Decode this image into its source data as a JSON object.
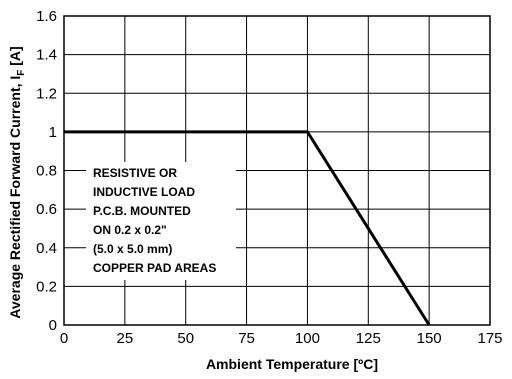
{
  "chart_data": {
    "type": "line",
    "title": "",
    "xlabel": "Ambient Temperature [ºC]",
    "ylabel_main": "Average Rectified Forward Current, I",
    "ylabel_sub": "F",
    "ylabel_unit": " [A]",
    "xlim": [
      0,
      175
    ],
    "ylim": [
      0,
      1.6
    ],
    "x_ticks": [
      0,
      25,
      50,
      75,
      100,
      125,
      150,
      175
    ],
    "x_tick_labels": [
      "0",
      "25",
      "50",
      "75",
      "100",
      "125",
      "150",
      "175"
    ],
    "y_ticks": [
      0,
      0.2,
      0.4,
      0.6,
      0.8,
      1,
      1.2,
      1.4,
      1.6
    ],
    "y_tick_labels": [
      "0",
      "0.2",
      "0.4",
      "0.6",
      "0.8",
      "1",
      "1.2",
      "1.4",
      "1.6"
    ],
    "grid": true,
    "series": [
      {
        "x": [
          0,
          100,
          150
        ],
        "y": [
          1,
          1,
          0
        ]
      }
    ],
    "annotation": [
      "RESISTIVE OR",
      "INDUCTIVE LOAD",
      "P.C.B. MOUNTED",
      "ON 0.2 x 0.2\"",
      "(5.0 x 5.0 mm)",
      "COPPER PAD AREAS"
    ]
  }
}
